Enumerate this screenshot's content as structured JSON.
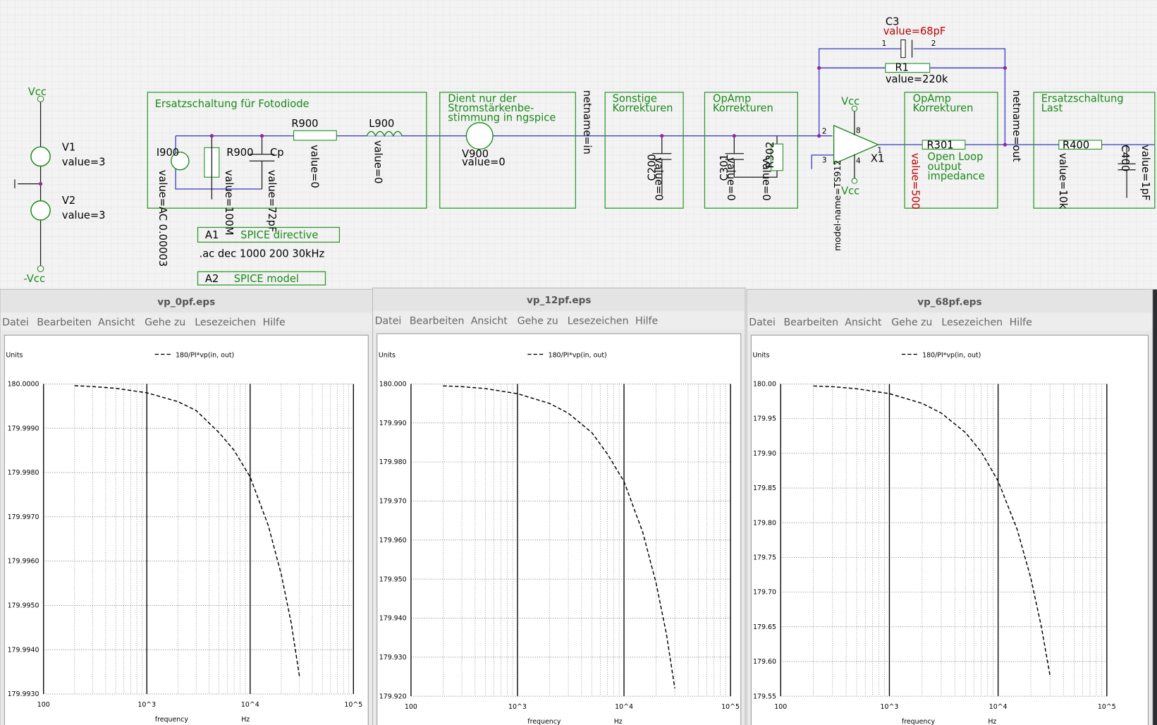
{
  "schematic": {
    "labels": [
      "Vcc",
      "V1",
      "value=3",
      "V2",
      "value=3",
      "-Vcc",
      "Ersatzschaltung für Fotodiode",
      "I900",
      "R900",
      "Cp",
      "R900",
      "L900",
      "value=AC 0.00003",
      "value=100M",
      "value=72pF",
      "value=0",
      "value=0",
      "Dient nur der",
      "Stromstärkenbe-",
      "stimmung in ngspice",
      "V900",
      "value=0",
      "netname=in",
      "Sonstige",
      "Korrekturen",
      "C200",
      "value=0",
      "OpAmp",
      "Korrekturen",
      "C301",
      "value=0",
      "R302",
      "value=0",
      "Vcc",
      "Vcc",
      "X1",
      "model-name=TS912",
      "C3",
      "value=68pF",
      "R1",
      "value=220k",
      "OpAmp",
      "Korrekturen",
      "R301",
      "value=500",
      "Open Loop",
      "output",
      "impedance",
      "netname=out",
      "Ersatzschaltung",
      "Last",
      "R400",
      "value=10k",
      "C400",
      "value=1pF",
      "A1",
      "SPICE directive",
      ".ac dec 1000 200 30kHz",
      "A2",
      "SPICE model",
      "2",
      "3",
      "8",
      "4",
      "1",
      "1",
      "2"
    ]
  },
  "windows": [
    {
      "title": "vp_0pf.eps",
      "menu": [
        "Datei",
        "Bearbeiten",
        "Ansicht",
        "Gehe zu",
        "Lesezeichen",
        "Hilfe"
      ],
      "plot": {
        "ylabel": "Units",
        "legend": "180/PI*vp(in, out)",
        "xlabel": "frequency",
        "xunit": "Hz",
        "xscale": "log",
        "color": "#000000",
        "xlim": [
          100,
          100000
        ],
        "xticks": [
          100,
          {
            "value": 1000,
            "label": "10^3"
          },
          {
            "value": 10000,
            "label": "10^4"
          },
          {
            "value": 100000,
            "label": "10^5"
          }
        ],
        "ylim": [
          179.993,
          180.0
        ],
        "yticks": [
          {
            "value": 179.993,
            "label": "179.9930"
          },
          {
            "value": 179.994,
            "label": "179.9940"
          },
          {
            "value": 179.995,
            "label": "179.9950"
          },
          {
            "value": 179.996,
            "label": "179.9960"
          },
          {
            "value": 179.997,
            "label": "179.9970"
          },
          {
            "value": 179.998,
            "label": "179.9980"
          },
          {
            "value": 179.999,
            "label": "179.9990"
          },
          {
            "value": 180.0,
            "label": "180.0000"
          }
        ],
        "x": [
          200,
          300,
          500,
          1000,
          2000,
          3000,
          5000,
          7000,
          10000,
          15000,
          20000,
          25000,
          30000
        ],
        "values": [
          179.99996,
          179.99994,
          179.9999,
          179.9998,
          179.9996,
          179.9994,
          179.9989,
          179.9985,
          179.9979,
          179.9968,
          179.9957,
          179.9946,
          179.9934
        ]
      }
    },
    {
      "title": "vp_12pf.eps",
      "menu": [
        "Datei",
        "Bearbeiten",
        "Ansicht",
        "Gehe zu",
        "Lesezeichen",
        "Hilfe"
      ],
      "plot": {
        "ylabel": "Units",
        "legend": "180/PI*vp(in, out)",
        "xlabel": "frequency",
        "xunit": "Hz",
        "xscale": "log",
        "color": "#000000",
        "xlim": [
          100,
          100000
        ],
        "xticks": [
          100,
          {
            "value": 1000,
            "label": "10^3"
          },
          {
            "value": 10000,
            "label": "10^4"
          },
          {
            "value": 100000,
            "label": "10^5"
          }
        ],
        "ylim": [
          179.92,
          180.0
        ],
        "yticks": [
          {
            "value": 179.92,
            "label": "179.920"
          },
          {
            "value": 179.93,
            "label": "179.930"
          },
          {
            "value": 179.94,
            "label": "179.940"
          },
          {
            "value": 179.95,
            "label": "179.950"
          },
          {
            "value": 179.96,
            "label": "179.960"
          },
          {
            "value": 179.97,
            "label": "179.970"
          },
          {
            "value": 179.98,
            "label": "179.980"
          },
          {
            "value": 179.99,
            "label": "179.990"
          },
          {
            "value": 180.0,
            "label": "180.000"
          }
        ],
        "x": [
          200,
          300,
          500,
          1000,
          2000,
          3000,
          5000,
          7000,
          10000,
          15000,
          20000,
          25000,
          30000
        ],
        "values": [
          179.9995,
          179.9993,
          179.9988,
          179.9975,
          179.995,
          179.9925,
          179.9875,
          179.982,
          179.975,
          179.962,
          179.949,
          179.936,
          179.922
        ]
      }
    },
    {
      "title": "vp_68pf.eps",
      "menu": [
        "Datei",
        "Bearbeiten",
        "Ansicht",
        "Gehe zu",
        "Lesezeichen",
        "Hilfe"
      ],
      "plot": {
        "ylabel": "Units",
        "legend": "180/PI*vp(in, out)",
        "xlabel": "frequency",
        "xunit": "Hz",
        "xscale": "log",
        "color": "#000000",
        "xlim": [
          100,
          100000
        ],
        "xticks": [
          100,
          {
            "value": 1000,
            "label": "10^3"
          },
          {
            "value": 10000,
            "label": "10^4"
          },
          {
            "value": 100000,
            "label": "10^5"
          }
        ],
        "ylim": [
          179.55,
          180.0
        ],
        "yticks": [
          179.55,
          {
            "value": 179.6,
            "label": "179.60"
          },
          179.65,
          {
            "value": 179.7,
            "label": "179.70"
          },
          179.75,
          {
            "value": 179.8,
            "label": "179.80"
          },
          179.85,
          {
            "value": 179.9,
            "label": "179.90"
          },
          179.95,
          {
            "value": 180.0,
            "label": "180.00"
          }
        ],
        "x": [
          200,
          300,
          500,
          1000,
          2000,
          3000,
          5000,
          7000,
          10000,
          15000,
          20000,
          25000,
          30000
        ],
        "values": [
          179.997,
          179.996,
          179.993,
          179.986,
          179.972,
          179.958,
          179.93,
          179.902,
          179.86,
          179.79,
          179.72,
          179.65,
          179.58
        ]
      }
    }
  ]
}
